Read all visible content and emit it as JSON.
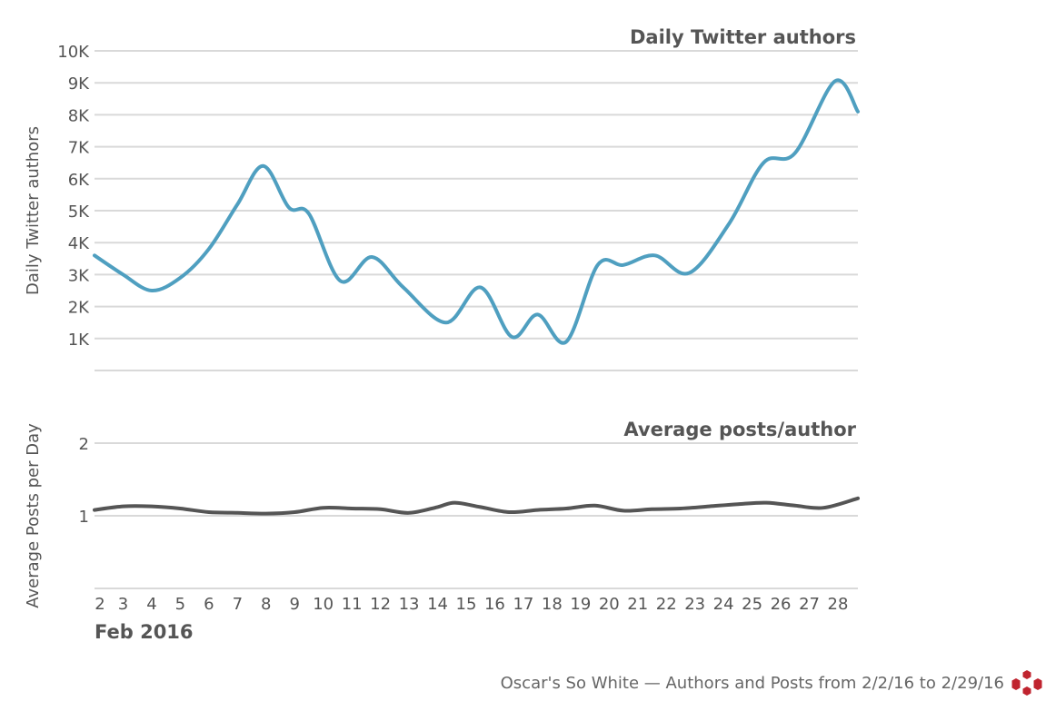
{
  "chart_data": [
    {
      "type": "line",
      "title": "Daily Twitter authors",
      "ylabel": "Daily Twitter authors",
      "ylim": [
        0,
        10000
      ],
      "yticks": [
        1000,
        2000,
        3000,
        4000,
        5000,
        6000,
        7000,
        8000,
        9000,
        10000
      ],
      "ytick_labels": [
        "1K",
        "2K",
        "3K",
        "4K",
        "5K",
        "6K",
        "7K",
        "8K",
        "9K",
        "10K"
      ],
      "grid": true,
      "color": "#4f9fc0",
      "series": [
        {
          "x": [
            2,
            3,
            4,
            5,
            6,
            7,
            7.9,
            8.8,
            9.5,
            10.6,
            11.7,
            12.8,
            14.3,
            15.5,
            16.6,
            17.5,
            18.5,
            19.6,
            20.5,
            21.6,
            22.8,
            24.2,
            25.4,
            26.5,
            27.9,
            28.7
          ],
          "values": [
            3600,
            3000,
            2500,
            2900,
            3800,
            5200,
            6400,
            5100,
            4900,
            2800,
            3550,
            2600,
            1500,
            2600,
            1050,
            1750,
            900,
            3300,
            3300,
            3600,
            3050,
            4600,
            6500,
            6800,
            9050,
            8100
          ]
        }
      ]
    },
    {
      "type": "line",
      "title": "Average posts/author",
      "ylabel": "Average Posts per Day",
      "ylim": [
        0,
        2
      ],
      "yticks": [
        1,
        2
      ],
      "ytick_labels": [
        "1",
        "2"
      ],
      "grid": true,
      "color": "#555555",
      "series": [
        {
          "x": [
            2,
            3,
            4,
            5,
            6,
            7,
            8,
            9,
            10,
            11,
            12,
            13,
            14,
            14.6,
            15.5,
            16.5,
            17.5,
            18.5,
            19.5,
            20.5,
            21.5,
            22.5,
            23.5,
            24.5,
            25.5,
            26.5,
            27.5,
            28.7
          ],
          "values": [
            1.08,
            1.13,
            1.13,
            1.1,
            1.05,
            1.04,
            1.03,
            1.05,
            1.11,
            1.1,
            1.09,
            1.04,
            1.12,
            1.18,
            1.12,
            1.05,
            1.08,
            1.1,
            1.14,
            1.07,
            1.09,
            1.1,
            1.13,
            1.16,
            1.18,
            1.14,
            1.11,
            1.24
          ]
        }
      ]
    }
  ],
  "x_axis": {
    "min": 2,
    "max": 28.7,
    "ticks": [
      2,
      3,
      4,
      5,
      6,
      7,
      8,
      9,
      10,
      11,
      12,
      13,
      14,
      15,
      16,
      17,
      18,
      19,
      20,
      21,
      22,
      23,
      24,
      25,
      26,
      27,
      28
    ],
    "tick_labels": [
      "2",
      "3",
      "4",
      "5",
      "6",
      "7",
      "8",
      "9",
      "10",
      "11",
      "12",
      "13",
      "14",
      "15",
      "16",
      "17",
      "18",
      "19",
      "20",
      "21",
      "22",
      "23",
      "24",
      "25",
      "26",
      "27",
      "28"
    ],
    "label": "Feb 2016"
  },
  "footer": {
    "caption": "Oscar's So White — Authors and Posts from 2/2/16 to 2/29/16",
    "logo_name": "flower-logo-icon",
    "logo_color": "#c0242f"
  }
}
